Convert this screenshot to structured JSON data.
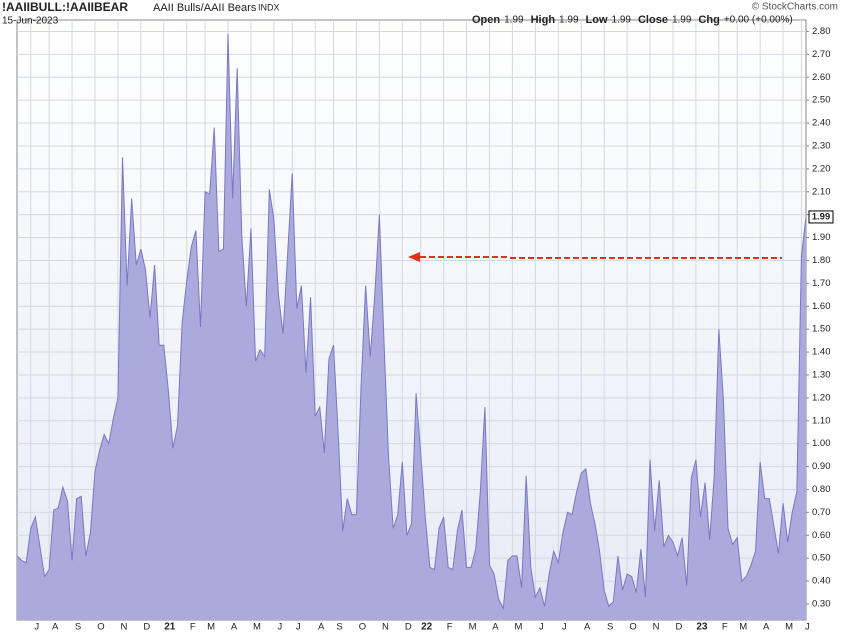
{
  "chart_data": {
    "type": "area",
    "title": "!AAIIBULL:!AAIIBEAR",
    "subtitle": "AAII Bulls/AAII Bears",
    "exchange": "INDX",
    "date": "15-Jun-2023",
    "copyright": "© StockCharts.com",
    "quote": [
      {
        "label": "Open",
        "value": "1.99"
      },
      {
        "label": "High",
        "value": "1.99"
      },
      {
        "label": "Low",
        "value": "1.99"
      },
      {
        "label": "Close",
        "value": "1.99"
      },
      {
        "label": "Chg",
        "value": "+0.00 (+0.00%)"
      }
    ],
    "color": "#aaaadc",
    "line_color": "#7878c4",
    "grid": true,
    "ylim": [
      0.23,
      2.85
    ],
    "yticks": [
      {
        "value": 0.3,
        "label": "0.30"
      },
      {
        "value": 0.4,
        "label": "0.40"
      },
      {
        "value": 0.5,
        "label": "0.50"
      },
      {
        "value": 0.6,
        "label": "0.60"
      },
      {
        "value": 0.7,
        "label": "0.70"
      },
      {
        "value": 0.8,
        "label": "0.80"
      },
      {
        "value": 0.9,
        "label": "0.90"
      },
      {
        "value": 1.0,
        "label": "1.00"
      },
      {
        "value": 1.1,
        "label": "1.10"
      },
      {
        "value": 1.2,
        "label": "1.20"
      },
      {
        "value": 1.3,
        "label": "1.30"
      },
      {
        "value": 1.4,
        "label": "1.40"
      },
      {
        "value": 1.5,
        "label": "1.50"
      },
      {
        "value": 1.6,
        "label": "1.60"
      },
      {
        "value": 1.7,
        "label": "1.70"
      },
      {
        "value": 1.8,
        "label": "1.80"
      },
      {
        "value": 1.9,
        "label": "1.90"
      },
      {
        "value": 2.0,
        "label": "2.00"
      },
      {
        "value": 2.1,
        "label": "2.10"
      },
      {
        "value": 2.2,
        "label": "2.20"
      },
      {
        "value": 2.3,
        "label": "2.30"
      },
      {
        "value": 2.4,
        "label": "2.40"
      },
      {
        "value": 2.5,
        "label": "2.50"
      },
      {
        "value": 2.6,
        "label": "2.60"
      },
      {
        "value": 2.7,
        "label": "2.70"
      },
      {
        "value": 2.8,
        "label": "2.80"
      }
    ],
    "categories": [
      null,
      null,
      null,
      "J",
      null,
      null,
      null,
      "A",
      null,
      null,
      null,
      null,
      "S",
      null,
      null,
      null,
      null,
      "O",
      null,
      null,
      null,
      null,
      "N",
      null,
      null,
      null,
      null,
      "D",
      null,
      null,
      null,
      null,
      "21",
      null,
      null,
      null,
      null,
      "F",
      null,
      null,
      null,
      "M",
      null,
      null,
      null,
      null,
      "A",
      null,
      null,
      null,
      null,
      "M",
      null,
      null,
      null,
      null,
      "J",
      null,
      null,
      null,
      "J",
      null,
      null,
      null,
      null,
      "A",
      null,
      null,
      null,
      "S",
      null,
      null,
      null,
      null,
      "O",
      null,
      null,
      null,
      null,
      "N",
      null,
      null,
      null,
      null,
      "D",
      null,
      null,
      null,
      "22",
      null,
      null,
      null,
      null,
      "F",
      null,
      null,
      null,
      null,
      "M",
      null,
      null,
      null,
      null,
      "A",
      null,
      null,
      null,
      null,
      "M",
      null,
      null,
      null,
      null,
      "J",
      null,
      null,
      null,
      null,
      "J",
      null,
      null,
      null,
      null,
      "A",
      null,
      null,
      null,
      null,
      "S",
      null,
      null,
      null,
      null,
      "O",
      null,
      null,
      null,
      null,
      "N",
      null,
      null,
      null,
      null,
      "D",
      null,
      null,
      null,
      null,
      "23",
      null,
      null,
      null,
      null,
      "F",
      null,
      null,
      null,
      "M",
      null,
      null,
      null,
      null,
      "A",
      null,
      null,
      null,
      null,
      "M",
      null,
      null,
      null,
      "J",
      null
    ],
    "values": [
      0.51,
      0.49,
      0.48,
      0.63,
      0.68,
      0.55,
      0.42,
      0.45,
      0.71,
      0.72,
      0.81,
      0.75,
      0.49,
      0.76,
      0.77,
      0.51,
      0.61,
      0.88,
      0.97,
      1.04,
      1.0,
      1.11,
      1.2,
      2.25,
      1.69,
      2.07,
      1.78,
      1.85,
      1.76,
      1.55,
      1.78,
      1.43,
      1.43,
      1.23,
      0.98,
      1.08,
      1.53,
      1.71,
      1.86,
      1.93,
      1.51,
      2.1,
      2.09,
      2.38,
      1.84,
      1.85,
      2.79,
      2.07,
      2.64,
      1.91,
      1.6,
      1.94,
      1.36,
      1.41,
      1.38,
      2.11,
      1.98,
      1.65,
      1.48,
      1.83,
      2.18,
      1.59,
      1.69,
      1.31,
      1.64,
      1.12,
      1.16,
      0.96,
      1.37,
      1.43,
      1.05,
      0.62,
      0.76,
      0.69,
      0.69,
      1.25,
      1.69,
      1.38,
      1.65,
      2.0,
      1.45,
      0.94,
      0.63,
      0.69,
      0.92,
      0.6,
      0.65,
      1.22,
      0.96,
      0.68,
      0.46,
      0.45,
      0.63,
      0.68,
      0.46,
      0.45,
      0.62,
      0.71,
      0.46,
      0.46,
      0.54,
      0.79,
      1.16,
      0.47,
      0.43,
      0.32,
      0.28,
      0.49,
      0.51,
      0.51,
      0.37,
      0.86,
      0.46,
      0.33,
      0.37,
      0.29,
      0.43,
      0.53,
      0.48,
      0.61,
      0.7,
      0.69,
      0.79,
      0.87,
      0.89,
      0.74,
      0.65,
      0.53,
      0.36,
      0.29,
      0.31,
      0.51,
      0.36,
      0.43,
      0.42,
      0.35,
      0.54,
      0.33,
      0.93,
      0.62,
      0.84,
      0.55,
      0.6,
      0.57,
      0.51,
      0.59,
      0.38,
      0.85,
      0.93,
      0.68,
      0.83,
      0.58,
      0.86,
      1.5,
      1.19,
      0.63,
      0.56,
      0.59,
      0.4,
      0.42,
      0.47,
      0.53,
      0.92,
      0.76,
      0.76,
      0.64,
      0.52,
      0.74,
      0.57,
      0.7,
      0.79,
      1.82,
      1.99
    ]
  }
}
